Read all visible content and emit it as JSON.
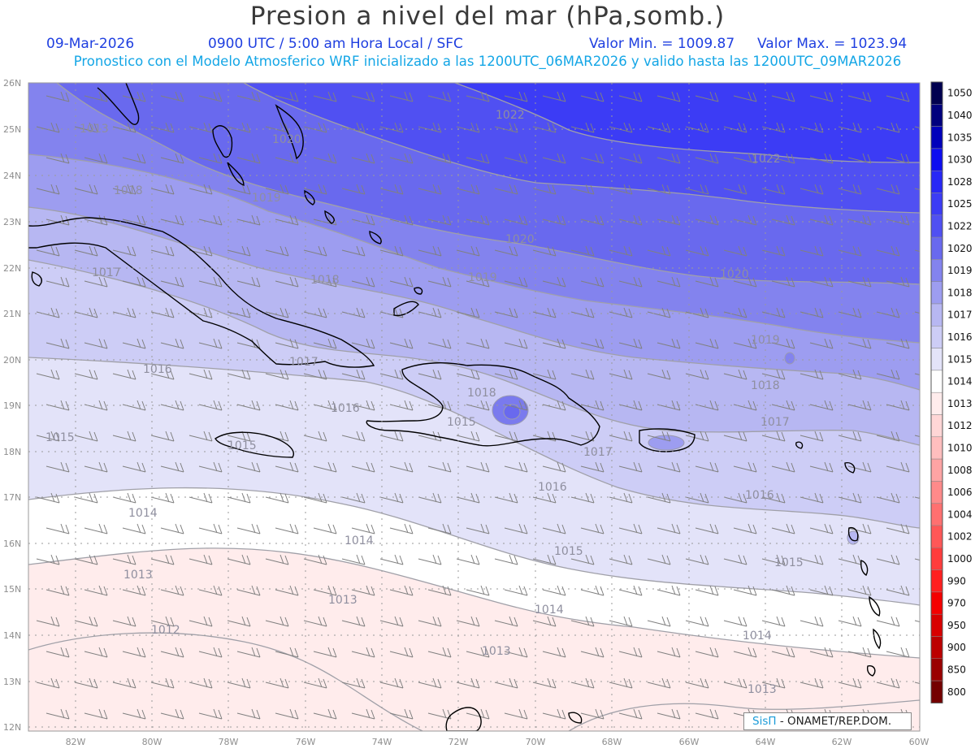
{
  "header": {
    "title": "Presion a nivel del mar (hPa,somb.)",
    "date": "09-Mar-2026",
    "time": "0900 UTC / 5:00 am Hora Local / SFC",
    "min_label": "Valor Min. = 1009.87",
    "max_label": "Valor Max. = 1023.94",
    "model_line": "Pronostico con el Modelo Atmosferico WRF inicializado a las 1200UTC_06MAR2026 y valido hasta las  1200UTC_09MAR2026"
  },
  "map": {
    "lat_labels": [
      "26N",
      "25N",
      "24N",
      "23N",
      "22N",
      "21N",
      "20N",
      "19N",
      "18N",
      "17N",
      "16N",
      "15N",
      "14N",
      "13N",
      "12N"
    ],
    "lon_labels": [
      "82W",
      "80W",
      "78W",
      "76W",
      "74W",
      "72W",
      "70W",
      "68W",
      "66W",
      "64W",
      "62W",
      "60W"
    ],
    "contour_labels": [
      "1013",
      "1020",
      "1022",
      "1022",
      "1018",
      "1019",
      "1020",
      "1017",
      "1018",
      "1019",
      "1020",
      "1016",
      "1017",
      "1018",
      "1019",
      "1018",
      "1016",
      "1015",
      "1017",
      "1017",
      "1015",
      "1015",
      "1016",
      "1016",
      "1014",
      "1014",
      "1015",
      "1015",
      "1013",
      "1013",
      "1014",
      "1014",
      "1012",
      "1013",
      "1013"
    ]
  },
  "colorbar": {
    "levels": [
      "1050",
      "1040",
      "1035",
      "1030",
      "1028",
      "1025",
      "1022",
      "1020",
      "1019",
      "1018",
      "1017",
      "1016",
      "1015",
      "1014",
      "1013",
      "1012",
      "1010",
      "1008",
      "1006",
      "1004",
      "1002",
      "1000",
      "990",
      "970",
      "950",
      "900",
      "850",
      "800"
    ],
    "colors": [
      "#000050",
      "#00007e",
      "#0000bb",
      "#0d0df0",
      "#2828f6",
      "#3c3cf5",
      "#5050f2",
      "#6969ee",
      "#8383ee",
      "#9d9df0",
      "#b7b7f2",
      "#cdcdf6",
      "#e3e3f9",
      "#ffffff",
      "#ffecec",
      "#ffd6d6",
      "#ffbebe",
      "#ffa4a4",
      "#ff8a8a",
      "#ff7070",
      "#ff5757",
      "#ff3c3c",
      "#ff2020",
      "#f40000",
      "#d80000",
      "#bc0000",
      "#9a0000",
      "#740000"
    ]
  },
  "credit": {
    "brand": "SisΠ",
    "org": "- ONAMET/REP.DOM."
  }
}
